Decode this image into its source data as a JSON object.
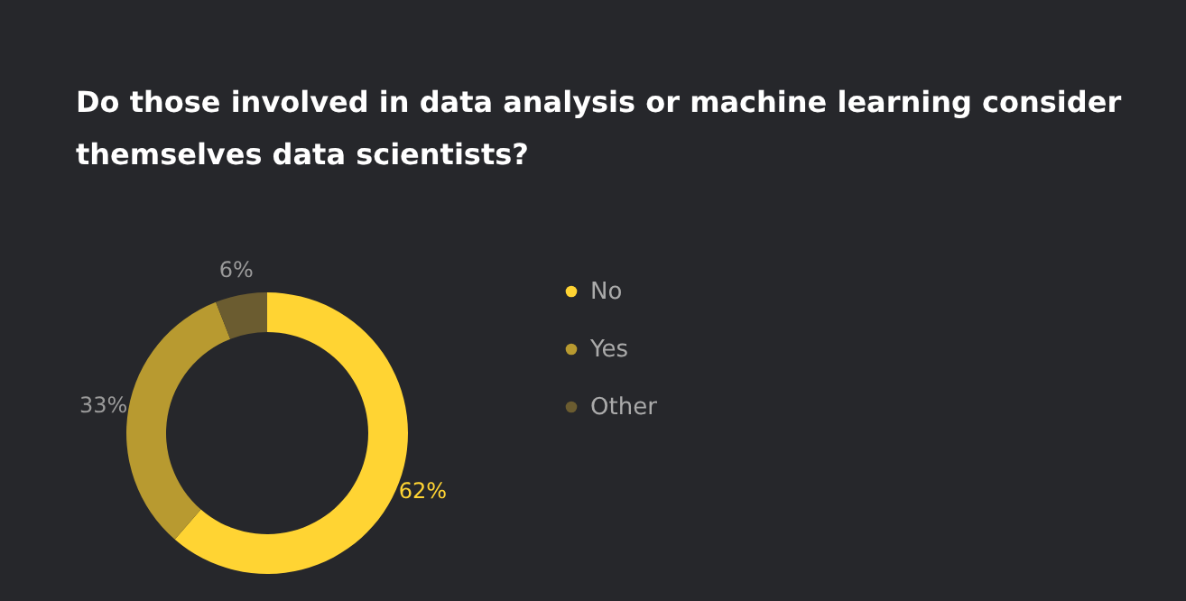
{
  "chart_data": {
    "type": "donut",
    "title": "Do those involved in data analysis or machine learning consider themselves data scientists?",
    "categories": [
      "No",
      "Yes",
      "Other"
    ],
    "values": [
      62,
      33,
      6
    ],
    "colors": [
      "#ffd433",
      "#b89a30",
      "#6b5c30"
    ],
    "value_labels": [
      "62%",
      "33%",
      "6%"
    ],
    "legend": "right"
  }
}
